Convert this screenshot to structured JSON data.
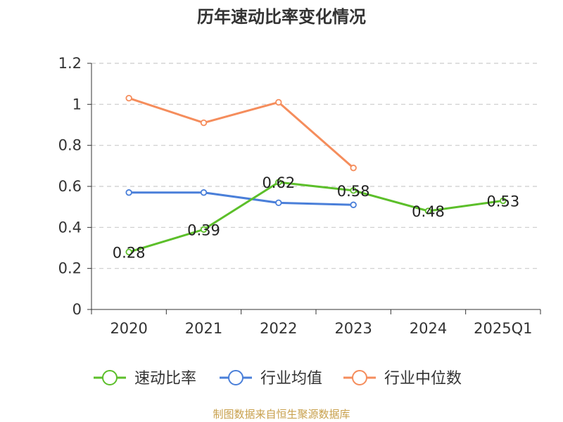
{
  "chart_data": {
    "type": "line",
    "title": "历年速动比率变化情况",
    "categories": [
      "2020",
      "2021",
      "2022",
      "2023",
      "2024",
      "2025Q1"
    ],
    "ylim": [
      0,
      1.2
    ],
    "yticks": [
      "0",
      "0.2",
      "0.4",
      "0.6",
      "0.8",
      "1",
      "1.2"
    ],
    "ytick_values": [
      0,
      0.2,
      0.4,
      0.6,
      0.8,
      1.0,
      1.2
    ],
    "grid": true,
    "legend_position": "bottom",
    "series": [
      {
        "name": "速动比率",
        "color": "#5cbf2a",
        "values": [
          0.28,
          0.39,
          0.62,
          0.58,
          0.48,
          0.53
        ],
        "labels": [
          "0.28",
          "0.39",
          "0.62",
          "0.58",
          "0.48",
          "0.53"
        ]
      },
      {
        "name": "行业均值",
        "color": "#4a7fd9",
        "values": [
          0.57,
          0.57,
          0.52,
          0.51,
          null,
          null
        ]
      },
      {
        "name": "行业中位数",
        "color": "#f58d5c",
        "values": [
          1.03,
          0.91,
          1.01,
          0.69,
          null,
          null
        ]
      }
    ]
  },
  "source_note": "制图数据来自恒生聚源数据库",
  "source_color": "#c8a04c"
}
